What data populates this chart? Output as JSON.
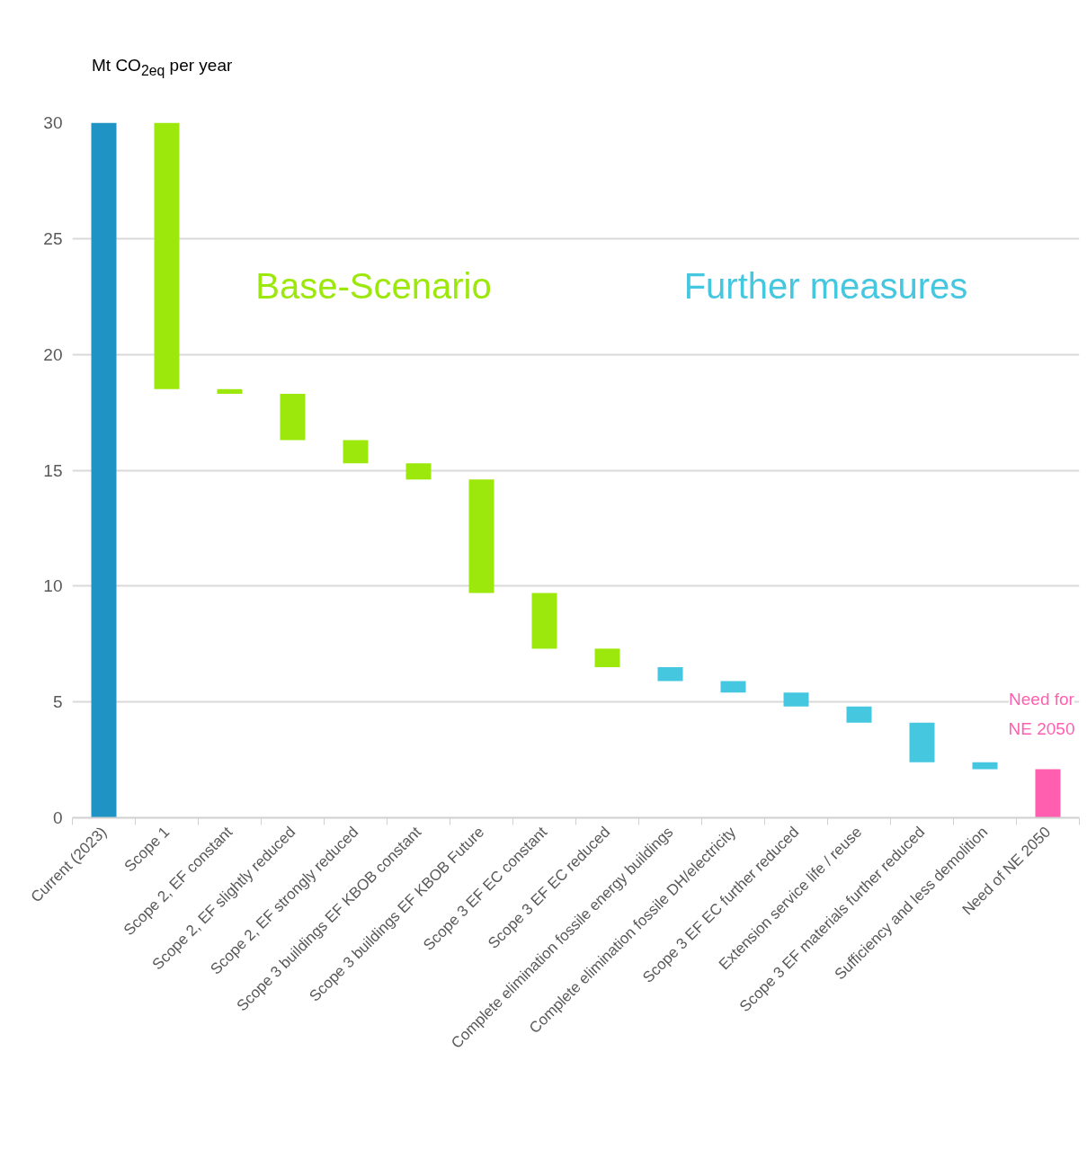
{
  "chart_data": {
    "type": "bar",
    "ylabel": "Mt CO$_{2eq}$ per year",
    "categories": [
      "Current (2023)",
      "Scope 1",
      "Scope 2, EF constant",
      "Scope 2, EF slightly reduced",
      "Scope 2, EF strongly reduced",
      "Scope 3 buildings EF KBOB constant",
      "Scope 3 buildings EF KBOB Future",
      "Scope 3 EF EC constant",
      "Scope 3 EF EC reduced",
      "Complete elimination fossile energy buildings",
      "Complete elimination fossile DH/electricity",
      "Scope 3 EF EC further reduced",
      "Extension service life / reuse",
      "Scope 3 EF materials further reduced",
      "Sufficiency and less demolition",
      "Need of NE 2050"
    ],
    "base": [
      0,
      30,
      18.5,
      18.3,
      16.3,
      15.3,
      14.6,
      9.7,
      7.3,
      6.5,
      5.9,
      5.4,
      4.8,
      4.1,
      2.4,
      0
    ],
    "values": [
      30,
      -11.5,
      -0.2,
      -2.0,
      -1.0,
      -0.7,
      -4.9,
      -2.4,
      -0.8,
      -0.6,
      -0.5,
      -0.6,
      -0.7,
      -1.7,
      -0.3,
      2.1
    ],
    "colors": [
      "#1f93c4",
      "#9de80c",
      "#9de80c",
      "#9de80c",
      "#9de80c",
      "#9de80c",
      "#9de80c",
      "#9de80c",
      "#9de80c",
      "#46c7e0",
      "#46c7e0",
      "#46c7e0",
      "#46c7e0",
      "#46c7e0",
      "#46c7e0",
      "#ff5fae"
    ],
    "ylim": [
      0,
      30
    ],
    "yticks": [
      0,
      5,
      10,
      15,
      20,
      25,
      30
    ],
    "grid": "y",
    "annotations": [
      "Base-Scenario",
      "Further measures",
      "Need for NE 2050"
    ]
  }
}
